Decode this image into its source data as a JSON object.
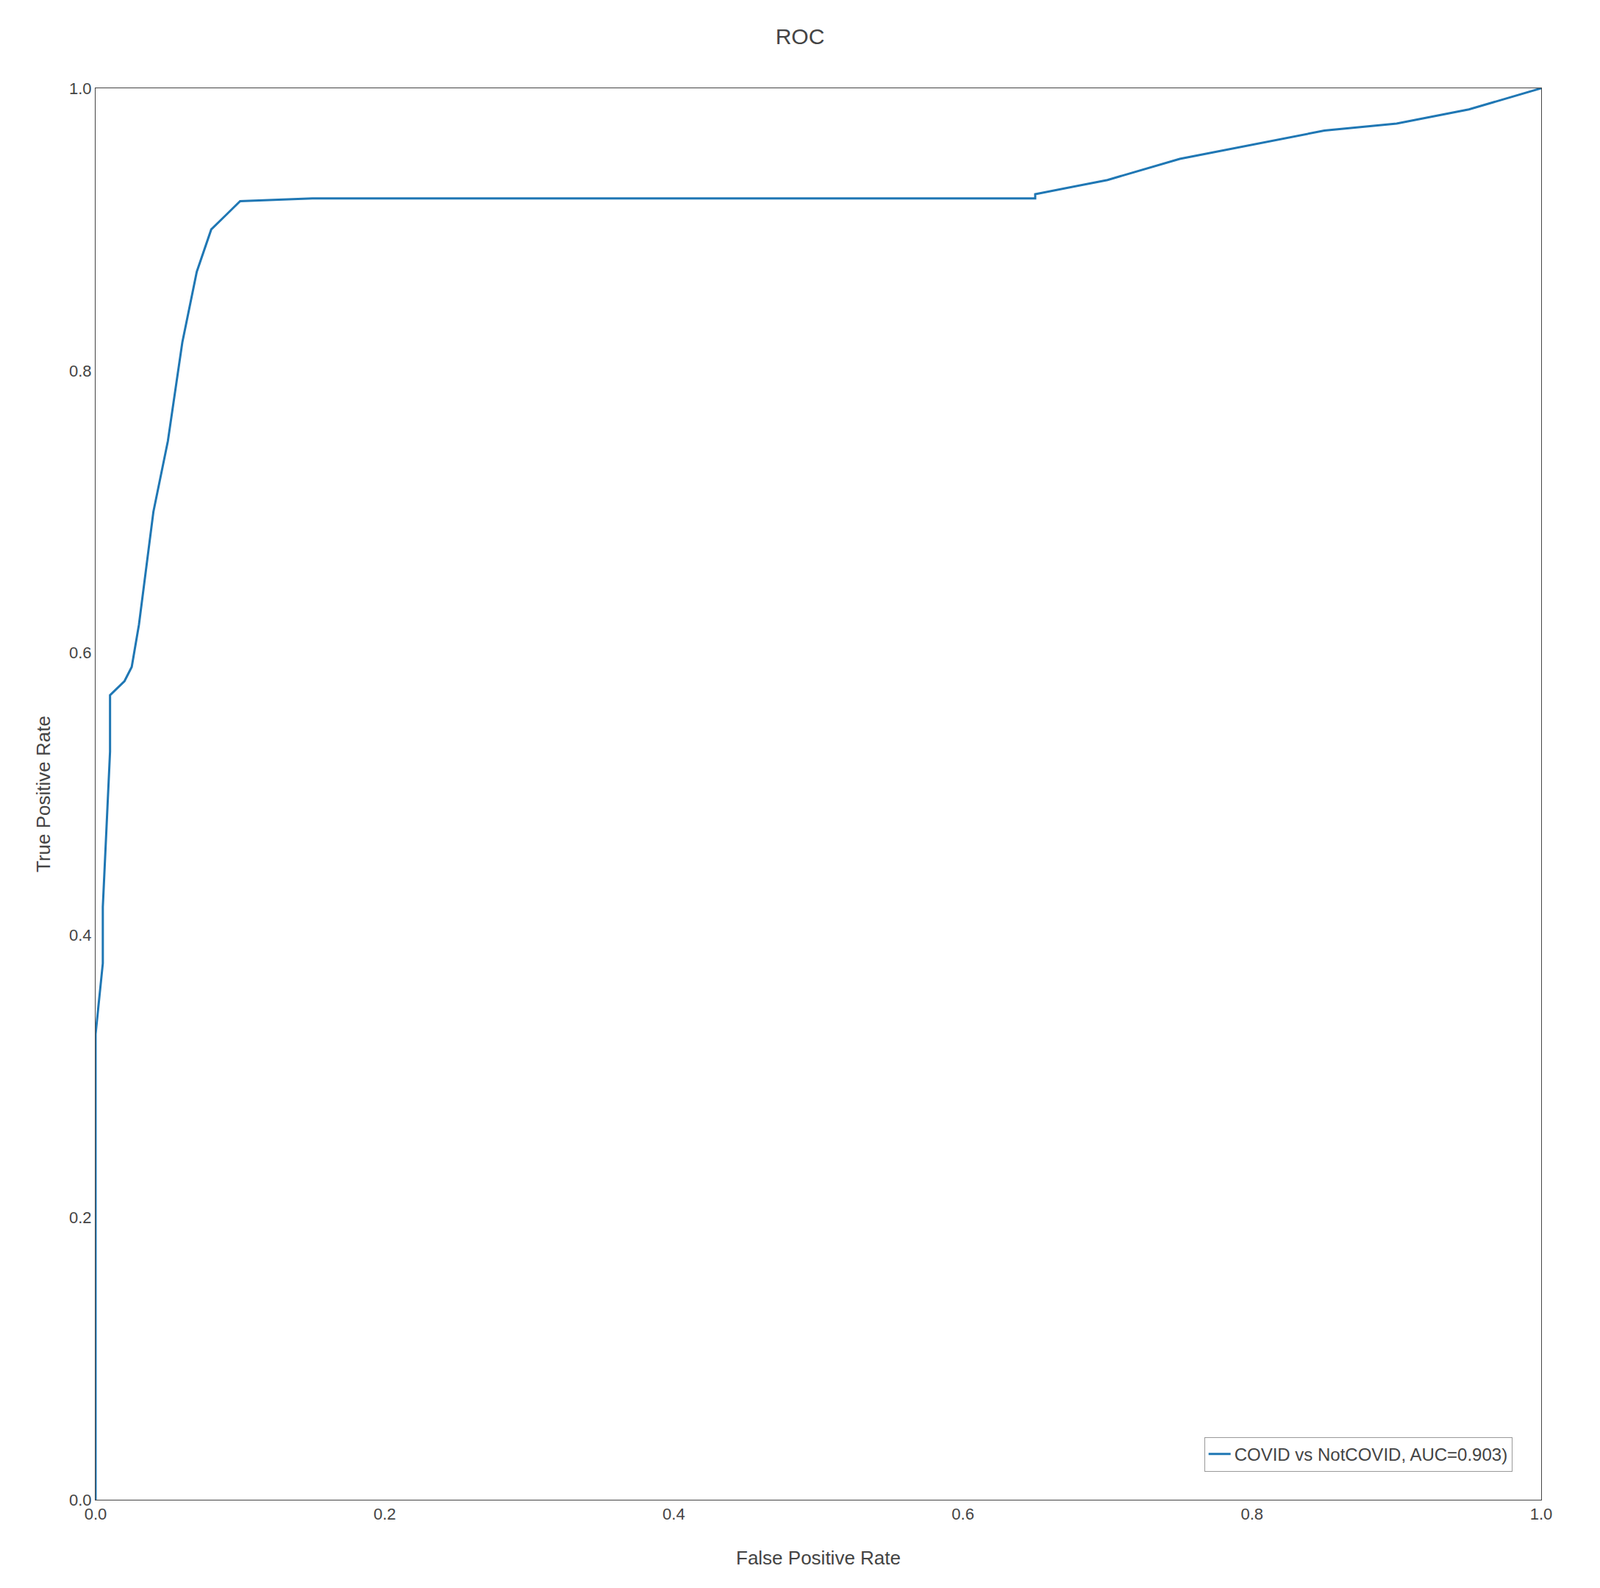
{
  "chart_data": {
    "type": "line",
    "title": "ROC",
    "xlabel": "False Positive Rate",
    "ylabel": "True Positive Rate",
    "x": [
      0.0,
      0.0,
      0.0,
      0.005,
      0.005,
      0.01,
      0.01,
      0.02,
      0.025,
      0.03,
      0.04,
      0.05,
      0.06,
      0.07,
      0.08,
      0.09,
      0.1,
      0.15,
      0.2,
      0.65,
      0.65,
      0.7,
      0.75,
      0.8,
      0.85,
      0.9,
      0.95,
      1.0
    ],
    "series": [
      {
        "name": "COVID vs NotCOVID, AUC=0.903)",
        "color": "#1f77b4",
        "values": [
          0.0,
          0.23,
          0.33,
          0.38,
          0.42,
          0.53,
          0.57,
          0.58,
          0.59,
          0.62,
          0.7,
          0.75,
          0.82,
          0.87,
          0.9,
          0.91,
          0.92,
          0.922,
          0.922,
          0.922,
          0.925,
          0.935,
          0.95,
          0.96,
          0.97,
          0.975,
          0.985,
          1.0
        ]
      }
    ],
    "xlim": [
      0.0,
      1.0
    ],
    "ylim": [
      0.0,
      1.0
    ],
    "xticks": [
      {
        "value": 0.0,
        "label": "0.0"
      },
      0.2,
      0.4,
      0.6,
      0.8,
      {
        "value": 1.0,
        "label": "1.0"
      }
    ],
    "yticks": [
      {
        "value": 0.0,
        "label": "0.0"
      },
      0.2,
      0.4,
      0.6,
      0.8,
      {
        "value": 1.0,
        "label": "1.0"
      }
    ],
    "grid": false,
    "legend": "lower right"
  }
}
